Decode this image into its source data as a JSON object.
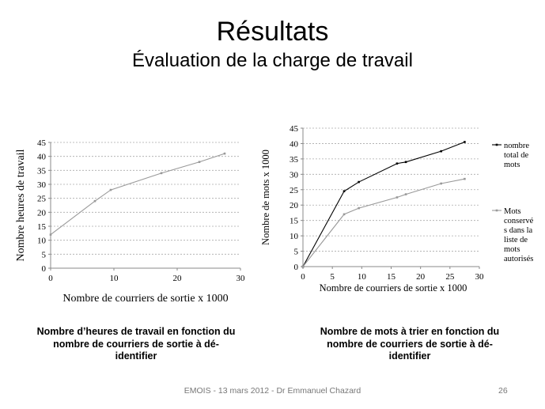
{
  "slide": {
    "title": "Résultats",
    "subtitle": "Évaluation de la charge de travail",
    "footer": "EMOIS - 13 mars 2012 - Dr Emmanuel Chazard",
    "page_number": "26"
  },
  "captions": {
    "left": [
      "Nombre d’heures de travail en fonction du",
      "nombre de courriers de sortie à dé-",
      "identifier"
    ],
    "right": [
      "Nombre de mots à trier en fonction du",
      "nombre de courriers de sortie à dé-",
      "identifier"
    ]
  },
  "chart_data": [
    {
      "type": "line",
      "xlabel": "Nombre de courriers de sortie x 1000",
      "ylabel": "Nombre heures de travail",
      "xlim": [
        0,
        30
      ],
      "ylim": [
        0,
        45
      ],
      "xticks": [
        0,
        10,
        20,
        30
      ],
      "yticks": [
        0,
        5,
        10,
        15,
        20,
        25,
        30,
        35,
        40,
        45
      ],
      "grid": "horizontal dashed",
      "series": [
        {
          "color": "#999999",
          "x": [
            0,
            7,
            9.5,
            17.5,
            23.5,
            27.5
          ],
          "y": [
            12,
            24,
            28,
            34,
            38,
            41
          ]
        }
      ]
    },
    {
      "type": "line",
      "xlabel": "Nombre de courriers de sortie x 1000",
      "ylabel": "Nombre de mots x 1000",
      "xlim": [
        0,
        30
      ],
      "ylim": [
        0,
        45
      ],
      "xticks": [
        0,
        5,
        10,
        15,
        20,
        25,
        30
      ],
      "yticks": [
        0,
        5,
        10,
        15,
        20,
        25,
        30,
        35,
        40,
        45
      ],
      "grid": "horizontal dashed",
      "legend": "right",
      "series": [
        {
          "name": "nombre total de mots",
          "legend_lines": [
            "nombre",
            "total de",
            "mots"
          ],
          "color": "#000000",
          "x": [
            0,
            7,
            9.5,
            16,
            17.5,
            23.5,
            27.5
          ],
          "y": [
            0,
            24.5,
            27.5,
            33.5,
            34,
            37.5,
            40.5
          ]
        },
        {
          "name": "Mots conservés dans la liste de mots autorisés",
          "legend_lines": [
            "Mots",
            "conservé",
            "s dans la",
            "liste de",
            "mots",
            "autorisés"
          ],
          "color": "#999999",
          "x": [
            0,
            7,
            9.5,
            16,
            17.5,
            23.5,
            27.5
          ],
          "y": [
            0,
            17,
            19,
            22.5,
            23.5,
            27,
            28.5
          ]
        }
      ]
    }
  ]
}
